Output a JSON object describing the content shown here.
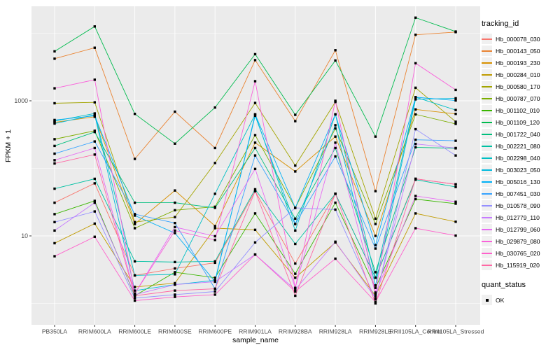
{
  "figure": {
    "background": "#FFFFFF",
    "panel_bg": "#EBEBEB",
    "grid_color": "#FFFFFF",
    "tick_label_color": "#4D4D4D",
    "axis_title_color": "#000000",
    "point_color": "#000000",
    "legend_key_bg": "#F0F0F0"
  },
  "chart_data": {
    "type": "line",
    "title": "",
    "xlabel": "sample_name",
    "ylabel": "FPKM + 1",
    "y_scale": "log10",
    "y_ticks": [
      10,
      1000
    ],
    "y_minor_ticks": [
      1,
      100,
      10000
    ],
    "ylim": [
      0.9,
      25000
    ],
    "grid": true,
    "point_shape": "square",
    "legend_position": "right",
    "categories": [
      "PB350LA",
      "RRIM600LA",
      "RRIM600LE",
      "RRIM600SE",
      "RRIM600PE",
      "RRIM901LA",
      "RRIM928BA",
      "RRIM928LA",
      "RRIM928LE",
      "RRII105LA_Control",
      "RRII105LA_Stressed"
    ],
    "legend": {
      "color_title": "tracking_id",
      "shape_title": "quant_status",
      "shape_items": [
        "OK"
      ]
    },
    "series": [
      {
        "name": "Hb_000078_030",
        "color": "#F8766D",
        "values": [
          31,
          60,
          2.6,
          3.3,
          4.0,
          46,
          3.9,
          42,
          2.4,
          70,
          58
        ]
      },
      {
        "name": "Hb_000143_050",
        "color": "#EA8331",
        "values": [
          4200,
          6100,
          138,
          690,
          200,
          4000,
          500,
          5600,
          46,
          9500,
          10400
        ]
      },
      {
        "name": "Hb_000193_230",
        "color": "#D89000",
        "values": [
          480,
          580,
          15,
          47,
          14,
          240,
          90,
          295,
          10,
          745,
          640
        ]
      },
      {
        "name": "Hb_000284_010",
        "color": "#C09B00",
        "values": [
          7.8,
          15.2,
          1.75,
          2.0,
          13,
          12.3,
          2.4,
          8,
          1.3,
          21.5,
          16.2
        ]
      },
      {
        "name": "Hb_000580_170",
        "color": "#A3A500",
        "values": [
          920,
          950,
          16,
          19,
          120,
          930,
          110,
          960,
          18,
          1560,
          490
        ]
      },
      {
        "name": "Hb_000787_070",
        "color": "#7CAE00",
        "values": [
          270,
          360,
          13,
          24,
          27,
          310,
          26,
          390,
          15,
          630,
          455
        ]
      },
      {
        "name": "Hb_001102_010",
        "color": "#39B600",
        "values": [
          21,
          33,
          1.3,
          2.9,
          2.4,
          21.5,
          2.75,
          31,
          1.7,
          35,
          30
        ]
      },
      {
        "name": "Hb_001109_120",
        "color": "#00BB4E",
        "values": [
          5400,
          12600,
          640,
          232,
          795,
          4900,
          620,
          3950,
          295,
          17000,
          10600
        ]
      },
      {
        "name": "Hb_001722_040",
        "color": "#00BF7D",
        "values": [
          215,
          345,
          31,
          31,
          26,
          200,
          18,
          200,
          2.9,
          205,
          198
        ]
      },
      {
        "name": "Hb_002221_080",
        "color": "#00C1A3",
        "values": [
          50,
          70,
          4.2,
          4.1,
          4.2,
          49,
          7.6,
          42,
          2.4,
          68,
          53
        ]
      },
      {
        "name": "Hb_002298_040",
        "color": "#00BFC4",
        "values": [
          500,
          650,
          2.6,
          2.7,
          42,
          630,
          12,
          630,
          2.4,
          1130,
          730
        ]
      },
      {
        "name": "Hb_003023_050",
        "color": "#00BADE",
        "values": [
          460,
          620,
          1.55,
          1.9,
          2.2,
          600,
          15,
          435,
          1.85,
          1050,
          1090
        ]
      },
      {
        "name": "Hb_005016_130",
        "color": "#00B0F6",
        "values": [
          520,
          600,
          20,
          11,
          2.1,
          630,
          26,
          630,
          7.3,
          1130,
          1010
        ]
      },
      {
        "name": "Hb_007451_030",
        "color": "#35A2FF",
        "values": [
          165,
          250,
          21,
          15.5,
          1.65,
          155,
          15,
          150,
          6.5,
          265,
          256
        ]
      },
      {
        "name": "Hb_010578_090",
        "color": "#9590FF",
        "values": [
          16,
          23,
          1.2,
          1.35,
          1.5,
          8,
          26,
          24.5,
          1.15,
          380,
          155
        ]
      },
      {
        "name": "Hb_012779_110",
        "color": "#C77CFF",
        "values": [
          12,
          31,
          1.35,
          1.9,
          2.1,
          5.3,
          1.6,
          8.2,
          1.2,
          230,
          200
        ]
      },
      {
        "name": "Hb_012799_060",
        "color": "#E76BF3",
        "values": [
          132,
          200,
          1.4,
          13.5,
          9.9,
          98,
          1.7,
          240,
          1.4,
          39,
          32
        ]
      },
      {
        "name": "Hb_029879_080",
        "color": "#FA62DB",
        "values": [
          1530,
          2050,
          1.4,
          12,
          8.7,
          1950,
          1.7,
          1000,
          1.45,
          3600,
          1450
        ]
      },
      {
        "name": "Hb_030765_020",
        "color": "#FF61CC",
        "values": [
          5,
          9.7,
          1.1,
          1.25,
          1.35,
          5.3,
          1.5,
          4.6,
          1.05,
          13,
          10.1
        ]
      },
      {
        "name": "Hb_115919_020",
        "color": "#FF67A4",
        "values": [
          118,
          160,
          1.3,
          1.55,
          1.65,
          46,
          1.3,
          42,
          1.0,
          70,
          58
        ]
      }
    ]
  }
}
